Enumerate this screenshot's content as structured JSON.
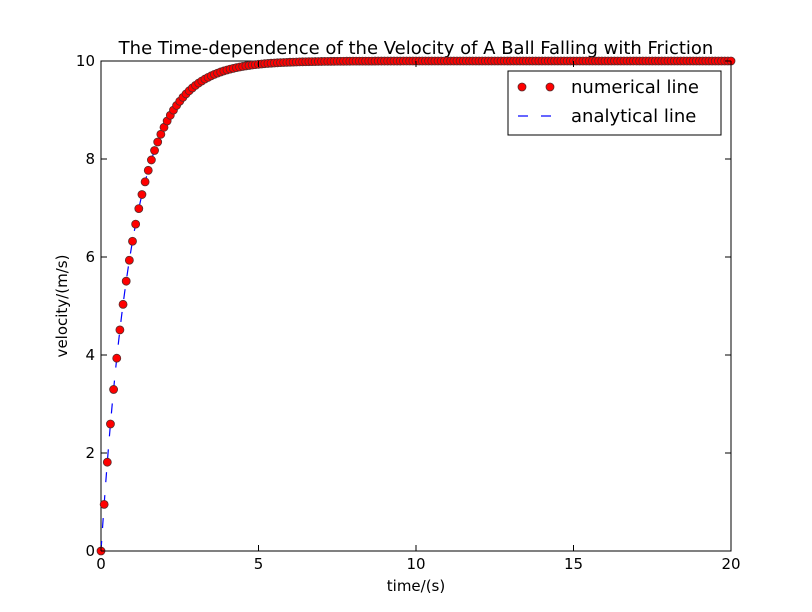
{
  "chart_data": {
    "type": "scatter",
    "title": "The Time-dependence of the Velocity of A Ball Falling with Friction",
    "xlabel": "time/(s)",
    "ylabel": "velocity/(m/s)",
    "xlim": [
      0,
      20
    ],
    "ylim": [
      0,
      10
    ],
    "xticks": [
      "0",
      "5",
      "10",
      "15",
      "20"
    ],
    "yticks": [
      "0",
      "2",
      "4",
      "6",
      "8",
      "10"
    ],
    "grid": false,
    "legend_position": "top-right",
    "series": [
      {
        "name": "numerical line",
        "style": "markers",
        "color": "#ff0000",
        "edge_color": "#5a2a2a",
        "x_start": 0,
        "x_step": 0.1,
        "x_end": 20,
        "terminal_velocity": 10,
        "time_constant": 1
      },
      {
        "name": "analytical line",
        "style": "dashed-line",
        "color": "#0000ff",
        "terminal_velocity": 10,
        "time_constant": 1
      }
    ]
  }
}
